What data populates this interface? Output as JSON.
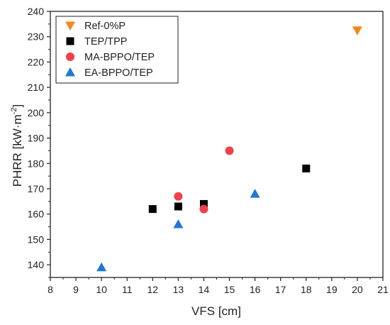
{
  "chart_data": {
    "type": "scatter",
    "title": "",
    "xlabel": "VFS [cm]",
    "ylabel": {
      "base": "PHRR [kW·m",
      "superscript": "-2",
      "close": "]"
    },
    "xlim": [
      8,
      21
    ],
    "ylim": [
      135,
      240
    ],
    "xticks": [
      8,
      9,
      10,
      11,
      12,
      13,
      14,
      15,
      16,
      17,
      18,
      19,
      20,
      21
    ],
    "yticks": [
      140,
      150,
      160,
      170,
      180,
      190,
      200,
      210,
      220,
      230,
      240
    ],
    "grid": false,
    "legend_position": "top-left",
    "series": [
      {
        "name": "Ref-0%P",
        "marker": "triangle-down",
        "color": "#f7861b",
        "points": [
          {
            "x": 20,
            "y": 232.5
          }
        ]
      },
      {
        "name": "TEP/TPP",
        "marker": "square",
        "color": "#000000",
        "points": [
          {
            "x": 12,
            "y": 162
          },
          {
            "x": 13,
            "y": 163
          },
          {
            "x": 14,
            "y": 164
          },
          {
            "x": 18,
            "y": 178
          }
        ]
      },
      {
        "name": "MA-BPPO/TEP",
        "marker": "circle",
        "color": "#f0404a",
        "points": [
          {
            "x": 13,
            "y": 167
          },
          {
            "x": 14,
            "y": 162
          },
          {
            "x": 15,
            "y": 185
          }
        ]
      },
      {
        "name": "EA-BPPO/TEP",
        "marker": "triangle-up",
        "color": "#1f77d4",
        "points": [
          {
            "x": 10,
            "y": 139
          },
          {
            "x": 13,
            "y": 156
          },
          {
            "x": 16,
            "y": 168
          }
        ]
      }
    ]
  }
}
